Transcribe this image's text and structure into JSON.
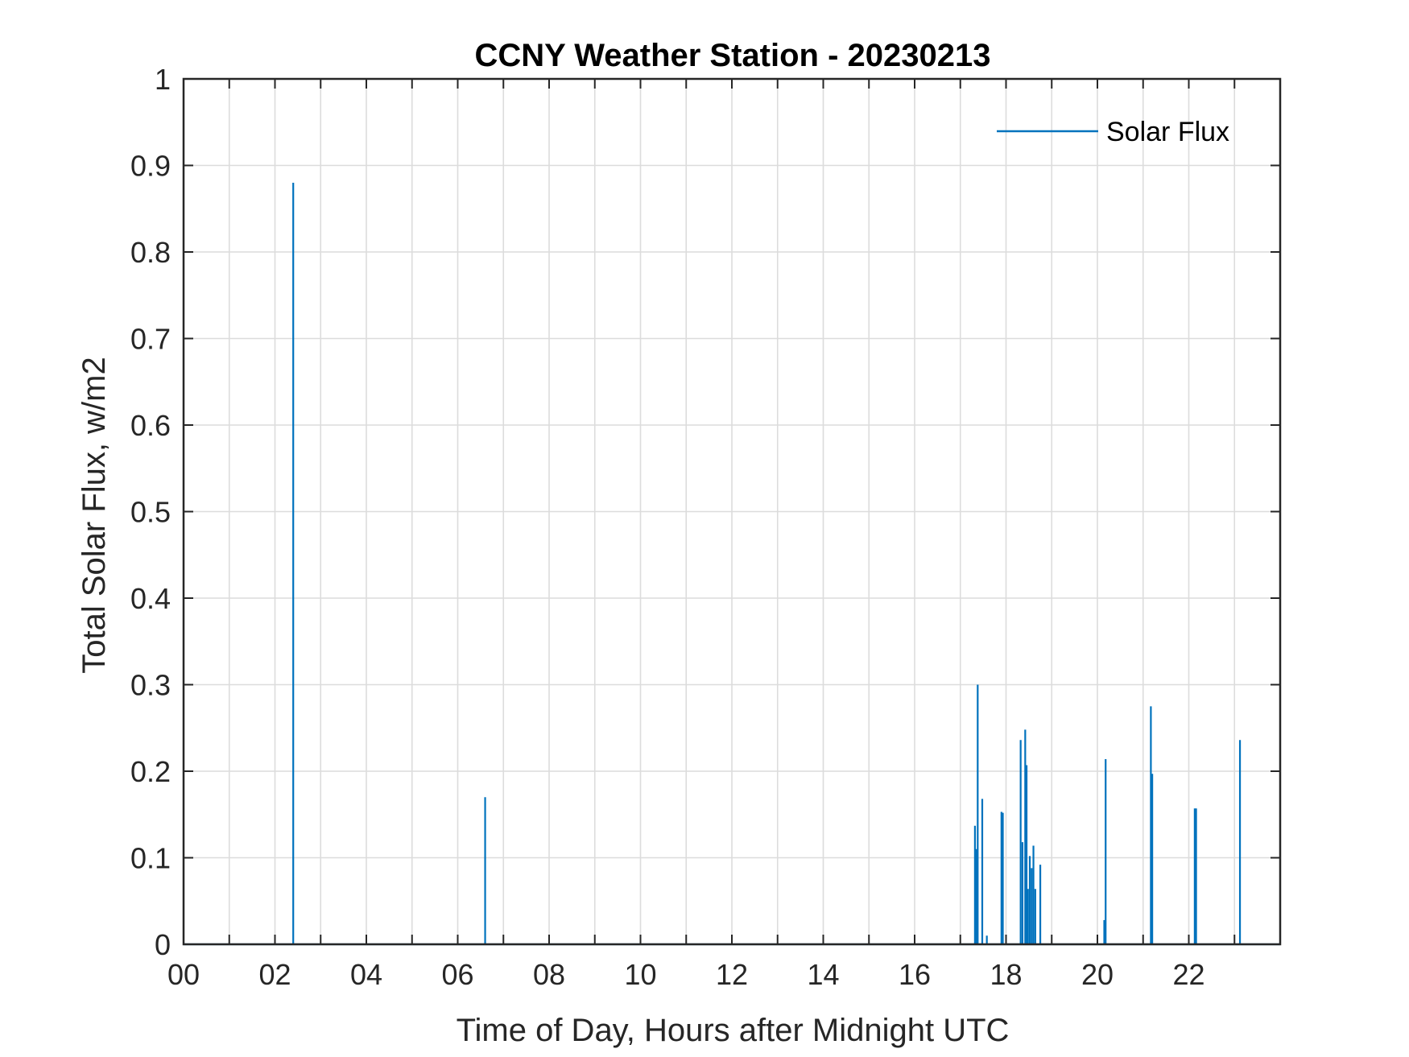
{
  "chart_data": {
    "type": "line",
    "title": "CCNY Weather Station - 20230213",
    "xlabel": "Time of Day, Hours after Midnight UTC",
    "ylabel": "Total Solar Flux, w/m2",
    "xlim": [
      0,
      24
    ],
    "ylim": [
      0,
      1
    ],
    "x_ticks": [
      0,
      1,
      2,
      3,
      4,
      5,
      6,
      7,
      8,
      9,
      10,
      11,
      12,
      13,
      14,
      15,
      16,
      17,
      18,
      19,
      20,
      21,
      22,
      23
    ],
    "x_tick_labels": [
      "00",
      "",
      "02",
      "",
      "04",
      "",
      "06",
      "",
      "08",
      "",
      "10",
      "",
      "12",
      "",
      "14",
      "",
      "16",
      "",
      "18",
      "",
      "20",
      "",
      "22",
      ""
    ],
    "y_ticks": [
      0,
      0.1,
      0.2,
      0.3,
      0.4,
      0.5,
      0.6,
      0.7,
      0.8,
      0.9,
      1
    ],
    "y_tick_labels": [
      "0",
      "0.1",
      "0.2",
      "0.3",
      "0.4",
      "0.5",
      "0.6",
      "0.7",
      "0.8",
      "0.9",
      "1"
    ],
    "grid": true,
    "legend": {
      "position": "top-right",
      "entries": [
        "Solar Flux"
      ]
    },
    "series": [
      {
        "name": "Solar Flux",
        "color": "#0072BD",
        "spikes": [
          {
            "x": 2.4,
            "y": 0.88
          },
          {
            "x": 6.6,
            "y": 0.17
          },
          {
            "x": 17.32,
            "y": 0.137
          },
          {
            "x": 17.35,
            "y": 0.11
          },
          {
            "x": 17.38,
            "y": 0.3
          },
          {
            "x": 17.48,
            "y": 0.168
          },
          {
            "x": 17.58,
            "y": 0.01
          },
          {
            "x": 17.9,
            "y": 0.153
          },
          {
            "x": 17.93,
            "y": 0.152
          },
          {
            "x": 18.32,
            "y": 0.236
          },
          {
            "x": 18.36,
            "y": 0.118
          },
          {
            "x": 18.42,
            "y": 0.248
          },
          {
            "x": 18.45,
            "y": 0.207
          },
          {
            "x": 18.48,
            "y": 0.064
          },
          {
            "x": 18.52,
            "y": 0.102
          },
          {
            "x": 18.56,
            "y": 0.088
          },
          {
            "x": 18.6,
            "y": 0.114
          },
          {
            "x": 18.64,
            "y": 0.064
          },
          {
            "x": 18.75,
            "y": 0.092
          },
          {
            "x": 20.15,
            "y": 0.028
          },
          {
            "x": 20.18,
            "y": 0.214
          },
          {
            "x": 21.17,
            "y": 0.275
          },
          {
            "x": 21.2,
            "y": 0.197
          },
          {
            "x": 22.13,
            "y": 0.157
          },
          {
            "x": 22.16,
            "y": 0.157
          },
          {
            "x": 23.12,
            "y": 0.236
          }
        ]
      }
    ]
  }
}
